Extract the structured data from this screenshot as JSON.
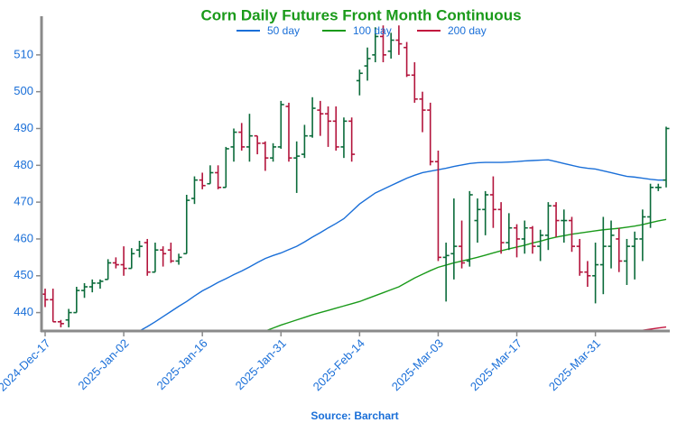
{
  "chart_data": {
    "type": "ohlc",
    "title": "Corn Daily Futures Front Month Continuous",
    "source": "Source: Barchart",
    "categories": [
      "2024-Dec-17",
      null,
      null,
      null,
      null,
      null,
      null,
      null,
      null,
      null,
      "2025-Jan-02",
      null,
      null,
      null,
      null,
      null,
      null,
      null,
      null,
      null,
      "2025-Jan-16",
      null,
      null,
      null,
      null,
      null,
      null,
      null,
      null,
      null,
      "2025-Jan-31",
      null,
      null,
      null,
      null,
      null,
      null,
      null,
      null,
      null,
      "2025-Feb-14",
      null,
      null,
      null,
      null,
      null,
      null,
      null,
      null,
      null,
      "2025-Mar-03",
      null,
      null,
      null,
      null,
      null,
      null,
      null,
      null,
      null,
      "2025-Mar-17",
      null,
      null,
      null,
      null,
      null,
      null,
      null,
      null,
      null,
      "2025-Mar-31",
      null,
      null,
      null,
      null,
      null,
      null,
      null,
      null,
      null
    ],
    "ohlc": {
      "up_color": "#0b6b3a",
      "down_color": "#b3143c",
      "open": [
        445,
        443.5,
        437.5,
        438,
        440,
        446,
        447,
        448,
        449,
        453.5,
        453,
        452,
        457,
        459,
        451,
        457,
        457,
        454,
        456,
        471,
        476,
        475,
        478,
        474,
        485,
        489,
        485,
        488,
        486,
        482,
        485,
        496,
        482,
        483,
        488,
        495,
        494,
        492,
        485,
        492,
        503,
        507,
        510,
        515,
        511,
        514,
        512,
        504.5,
        498,
        495,
        481,
        455,
        456,
        458,
        454,
        465,
        468,
        472,
        468,
        459,
        463,
        460,
        463,
        458,
        461,
        469,
        465,
        465,
        458,
        451,
        450,
        453,
        458,
        460,
        454,
        458,
        460,
        466,
        474,
        476
      ],
      "high": [
        446.5,
        446.5,
        438,
        441,
        447,
        448,
        449,
        449,
        454.5,
        455,
        458,
        457.5,
        459.5,
        460,
        459,
        458,
        459,
        456,
        472,
        477,
        478,
        480,
        480,
        485,
        490,
        491.5,
        494,
        488,
        486.5,
        486,
        497.5,
        497,
        486.5,
        491,
        498.5,
        497.5,
        496,
        496,
        493,
        493,
        506,
        512,
        517.5,
        518,
        516,
        518,
        513.5,
        508,
        500,
        497,
        484,
        459,
        471,
        465,
        473,
        471,
        473,
        477,
        470,
        467,
        464,
        465,
        463.5,
        462.5,
        470,
        470,
        468,
        466,
        460,
        454,
        459,
        466,
        465,
        463,
        460,
        462,
        468,
        475,
        475,
        490.5
      ],
      "low": [
        441.5,
        437.5,
        436,
        436,
        440,
        444,
        445.5,
        446.5,
        449,
        452,
        450,
        452,
        455,
        450,
        451,
        452.5,
        453.5,
        453,
        456,
        469.5,
        473.5,
        475,
        473.5,
        474,
        481,
        484,
        481,
        483,
        478.5,
        481,
        484.5,
        481,
        472.5,
        482,
        487.5,
        488,
        485,
        484,
        482,
        481,
        499,
        503,
        508,
        508,
        509,
        510,
        504,
        497,
        489,
        480,
        454,
        443,
        449,
        452,
        452.5,
        459,
        461,
        463,
        456,
        457,
        455,
        456,
        456,
        454,
        457,
        460.5,
        459,
        456.5,
        450,
        447,
        442.5,
        445,
        452,
        451,
        447.5,
        449,
        454,
        463,
        473,
        474
      ],
      "close": [
        443.5,
        437.5,
        437,
        440,
        446,
        447,
        448,
        448.5,
        453.5,
        453,
        452,
        456,
        458,
        451,
        457,
        456,
        454,
        455,
        470.5,
        476,
        474.5,
        478,
        474,
        484.5,
        489,
        485,
        488,
        486,
        482,
        485,
        496.5,
        482,
        482.5,
        488,
        495.5,
        494,
        492,
        485,
        492,
        483,
        505,
        509,
        515,
        510,
        514,
        513,
        504.5,
        498,
        495,
        481,
        455,
        455.5,
        458,
        453.5,
        472,
        468,
        472,
        468,
        459,
        463,
        460,
        463,
        458,
        461,
        469,
        465,
        465,
        458,
        451,
        450,
        453,
        458,
        461,
        454,
        458,
        460,
        466,
        474,
        474,
        490
      ]
    },
    "series": [
      {
        "name": "50 day",
        "color": "#1a6fd8",
        "values": [
          null,
          null,
          null,
          null,
          null,
          null,
          null,
          null,
          null,
          null,
          null,
          null,
          435.0,
          436.2,
          437.5,
          438.9,
          440.3,
          441.7,
          443.0,
          444.5,
          445.9,
          447.0,
          448.2,
          449.2,
          450.3,
          451.3,
          452.4,
          453.6,
          454.7,
          455.5,
          456.2,
          457.1,
          458.0,
          459.2,
          460.5,
          461.7,
          463.0,
          464.2,
          465.5,
          467.5,
          469.5,
          471.0,
          472.5,
          473.5,
          474.5,
          475.5,
          476.5,
          477.3,
          478.0,
          478.4,
          478.8,
          479.2,
          479.7,
          480.1,
          480.5,
          480.7,
          480.8,
          480.8,
          480.8,
          480.9,
          481.0,
          481.2,
          481.3,
          481.4,
          481.5,
          481.0,
          480.5,
          480.0,
          479.5,
          479.2,
          479.0,
          478.5,
          478.0,
          477.5,
          477.0,
          476.8,
          476.5,
          476.2,
          476.0,
          476.0
        ]
      },
      {
        "name": "100 day",
        "color": "#1a9a1a",
        "values": [
          null,
          null,
          null,
          null,
          null,
          null,
          null,
          null,
          null,
          null,
          null,
          null,
          null,
          null,
          null,
          null,
          null,
          null,
          null,
          null,
          null,
          null,
          null,
          null,
          null,
          null,
          null,
          null,
          435.0,
          435.8,
          436.6,
          437.3,
          438.0,
          438.7,
          439.4,
          440.0,
          440.6,
          441.2,
          441.8,
          442.4,
          443.0,
          443.8,
          444.6,
          445.4,
          446.2,
          447.0,
          448.2,
          449.4,
          450.4,
          451.4,
          452.3,
          452.9,
          453.5,
          454.0,
          454.5,
          455.0,
          455.6,
          456.2,
          456.8,
          457.3,
          457.8,
          458.3,
          458.9,
          459.4,
          460.0,
          460.5,
          460.9,
          461.3,
          461.6,
          461.9,
          462.2,
          462.5,
          462.7,
          462.9,
          463.2,
          463.5,
          463.9,
          464.4,
          464.9,
          465.3
        ]
      },
      {
        "name": "200 day",
        "color": "#c2143e",
        "values": [
          null,
          null,
          null,
          null,
          null,
          null,
          null,
          null,
          null,
          null,
          null,
          null,
          null,
          null,
          null,
          null,
          null,
          null,
          null,
          null,
          null,
          null,
          null,
          null,
          null,
          null,
          null,
          null,
          null,
          null,
          null,
          null,
          null,
          null,
          null,
          null,
          null,
          null,
          null,
          null,
          null,
          null,
          null,
          null,
          null,
          null,
          null,
          null,
          null,
          null,
          null,
          null,
          null,
          null,
          null,
          null,
          null,
          null,
          null,
          null,
          null,
          null,
          null,
          null,
          null,
          null,
          null,
          null,
          null,
          null,
          null,
          null,
          null,
          null,
          null,
          435.0,
          435.2,
          435.5,
          435.8,
          436.1
        ]
      }
    ],
    "ylim": [
      435,
      520.5
    ],
    "yticks": [
      440,
      450,
      460,
      470,
      480,
      490,
      500,
      510
    ]
  }
}
